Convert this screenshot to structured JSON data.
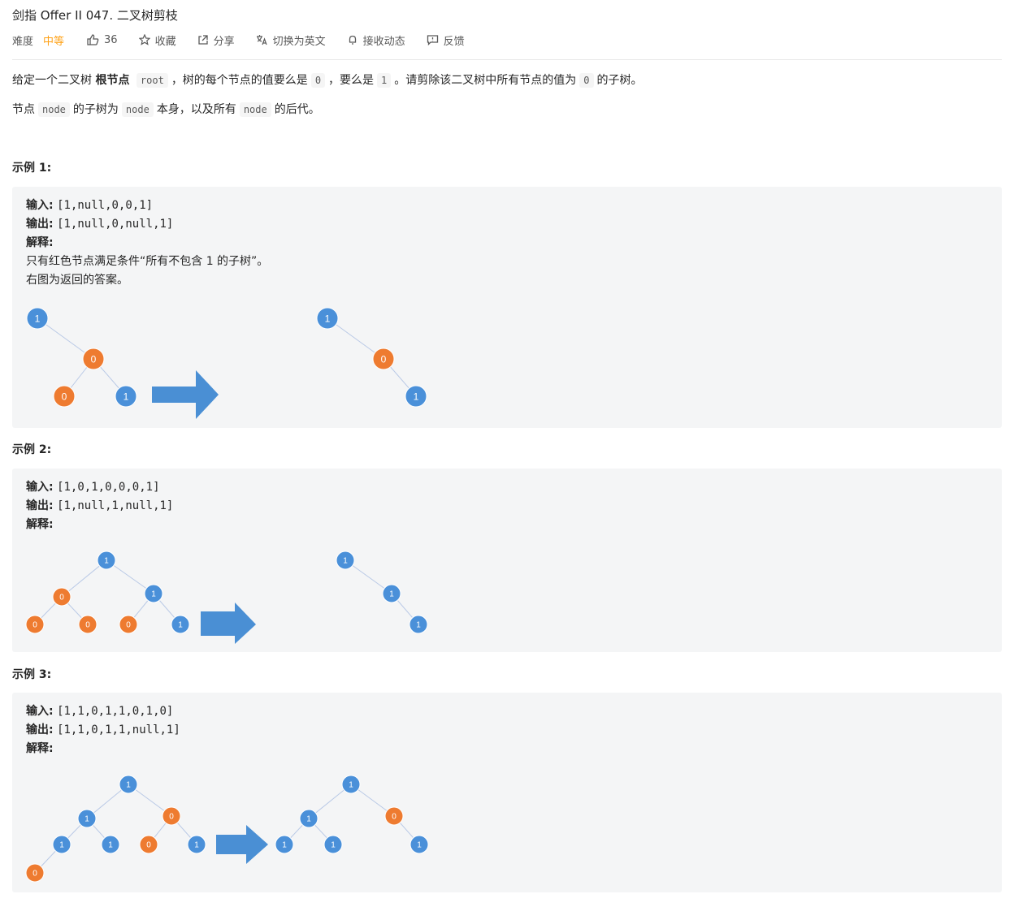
{
  "title": "剑指 Offer II 047. 二叉树剪枝",
  "meta": {
    "difficulty_label": "难度",
    "difficulty_value": "中等",
    "likes": "36",
    "favorite": "收藏",
    "share": "分享",
    "switch_lang": "切换为英文",
    "subscribe": "接收动态",
    "feedback": "反馈"
  },
  "description": {
    "p1_a": "给定一个二叉树",
    "p1_bold": "根节点",
    "p1_code1": "root",
    "p1_b": "，树的每个节点的值要么是",
    "p1_code2": "0",
    "p1_c": "，要么是",
    "p1_code3": "1",
    "p1_d": "。请剪除该二叉树中所有节点的值为",
    "p1_code4": "0",
    "p1_e": "的子树。",
    "p2_a": "节点",
    "p2_code1": "node",
    "p2_b": "的子树为",
    "p2_code2": "node",
    "p2_c": "本身，以及所有",
    "p2_code3": "node",
    "p2_d": "的后代。"
  },
  "examples": [
    {
      "title": "示例 1:",
      "input_label": "输入:",
      "input": "[1,null,0,0,1]",
      "output_label": "输出:",
      "output": "[1,null,0,null,1]",
      "explain_label": "解释:",
      "explain_1": "只有红色节点满足条件“所有不包含 1 的子树”。",
      "explain_2": "右图为返回的答案。",
      "tree_before": [
        "1",
        "0",
        "0",
        "1"
      ],
      "tree_after": [
        "1",
        "0",
        "1"
      ]
    },
    {
      "title": "示例 2:",
      "input_label": "输入:",
      "input": "[1,0,1,0,0,0,1]",
      "output_label": "输出:",
      "output": "[1,null,1,null,1]",
      "explain_label": "解释:",
      "tree_before": [
        "1",
        "0",
        "1",
        "0",
        "0",
        "0",
        "1"
      ],
      "tree_after": [
        "1",
        "1",
        "1"
      ]
    },
    {
      "title": "示例 3:",
      "input_label": "输入:",
      "input": "[1,1,0,1,1,0,1,0]",
      "output_label": "输出:",
      "output": "[1,1,0,1,1,null,1]",
      "explain_label": "解释:",
      "tree_before": [
        "1",
        "1",
        "0",
        "1",
        "1",
        "0",
        "1",
        "0"
      ],
      "tree_after": [
        "1",
        "1",
        "0",
        "1",
        "1",
        "1"
      ]
    }
  ],
  "colors": {
    "node_keep": "#4a90d9",
    "node_prune": "#ee7b30",
    "arrow": "#4a8fd4",
    "edge": "#b9c9e6",
    "difficulty": "#ffa116"
  }
}
